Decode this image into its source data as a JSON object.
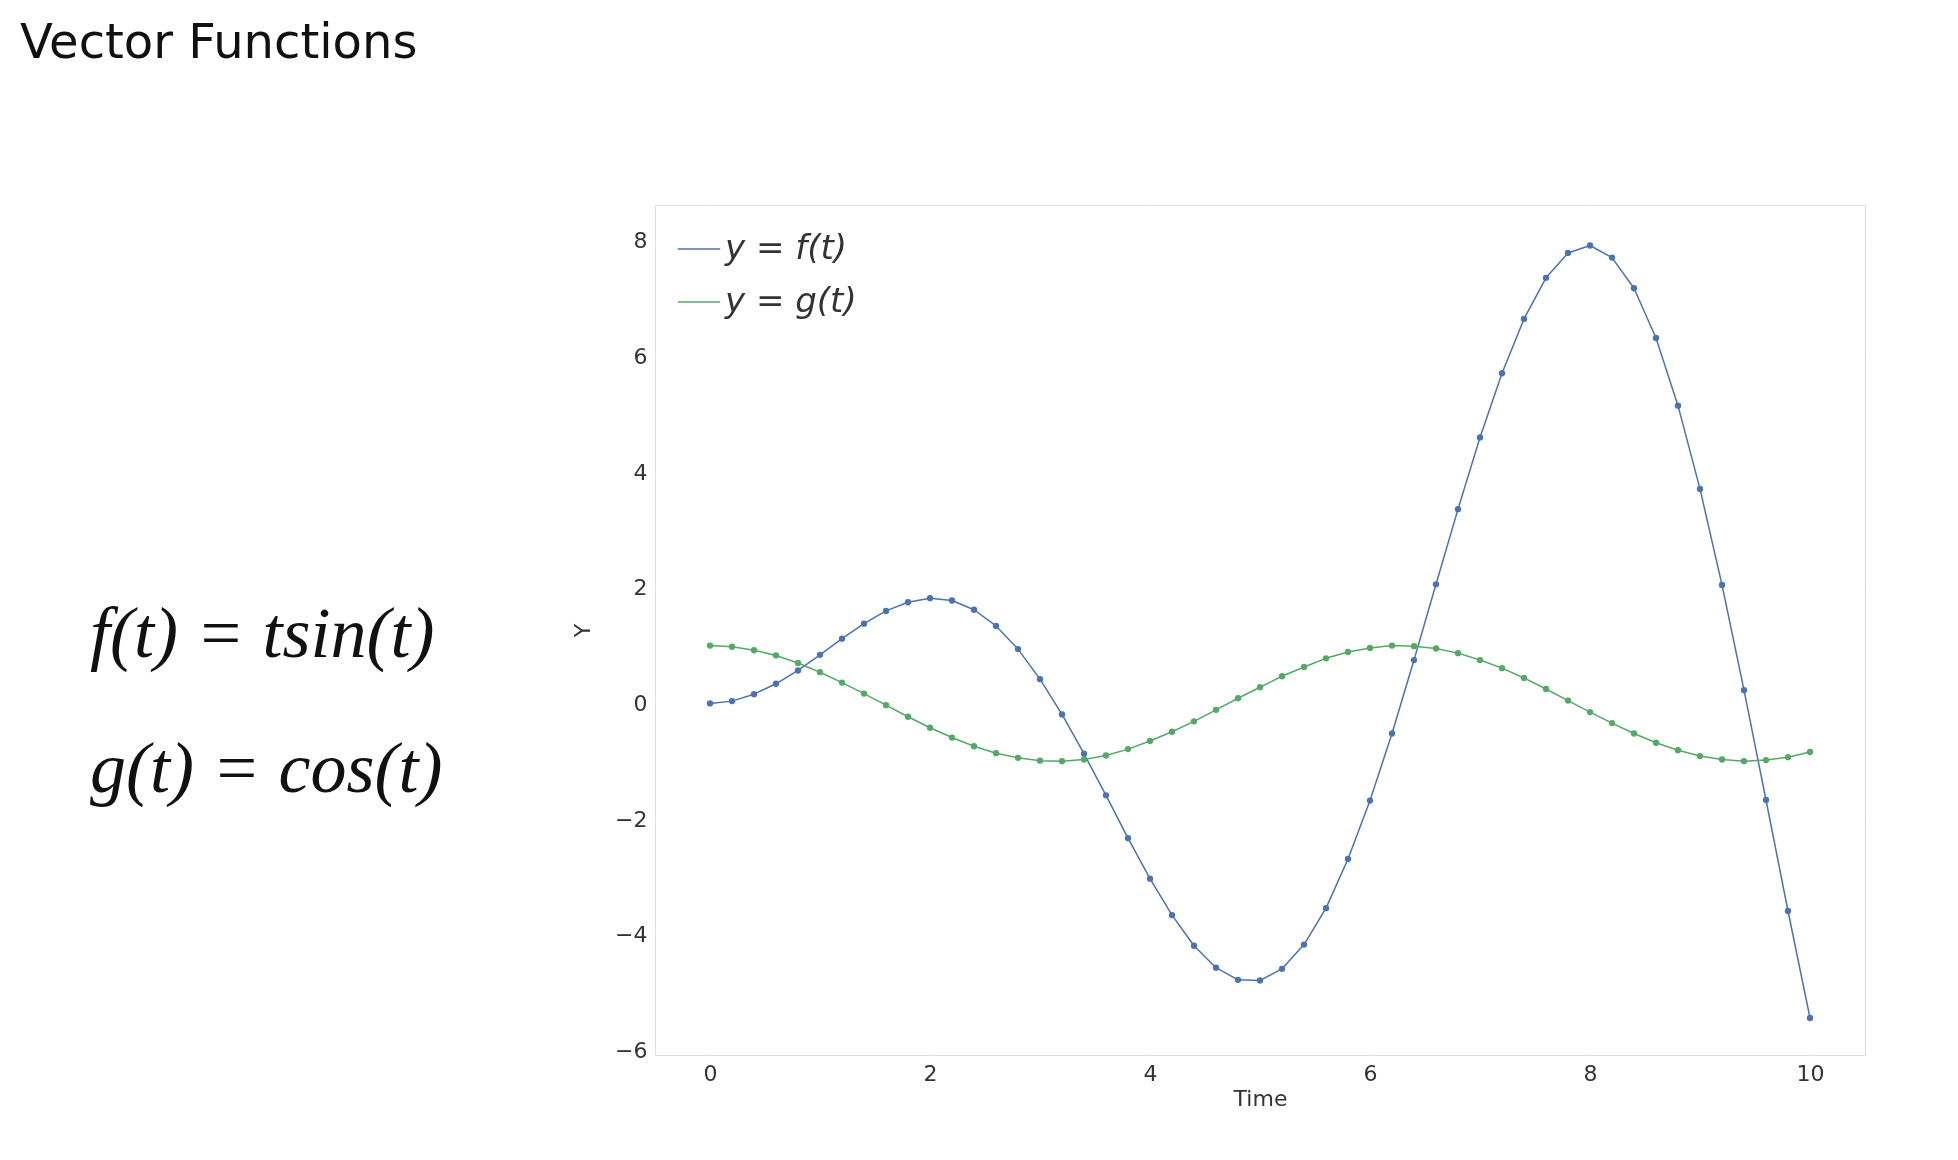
{
  "chart_data": {
    "type": "line",
    "title": "Vector Functions",
    "xlabel": "Time",
    "ylabel": "Y",
    "annotations": [
      "f(t) = tsin(t)",
      "g(t) = cos(t)"
    ],
    "x": [
      0,
      0.2,
      0.4,
      0.6,
      0.8,
      1.0,
      1.2,
      1.4,
      1.6,
      1.8,
      2.0,
      2.2,
      2.4,
      2.6,
      2.8,
      3.0,
      3.2,
      3.4,
      3.6,
      3.8,
      4.0,
      4.2,
      4.4,
      4.6,
      4.8,
      5.0,
      5.2,
      5.4,
      5.6,
      5.8,
      6.0,
      6.2,
      6.4,
      6.6,
      6.8,
      7.0,
      7.2,
      7.4,
      7.6,
      7.8,
      8.0,
      8.2,
      8.4,
      8.6,
      8.8,
      9.0,
      9.2,
      9.4,
      9.6,
      9.8,
      10.0
    ],
    "series": [
      {
        "name": "y = f(t)",
        "color": "#4c72b0",
        "values": [
          0,
          0.04,
          0.16,
          0.34,
          0.57,
          0.84,
          1.12,
          1.38,
          1.6,
          1.75,
          1.82,
          1.78,
          1.62,
          1.34,
          0.94,
          0.42,
          -0.19,
          -0.87,
          -1.59,
          -2.33,
          -3.03,
          -3.66,
          -4.19,
          -4.57,
          -4.78,
          -4.79,
          -4.59,
          -4.17,
          -3.54,
          -2.69,
          -1.68,
          -0.52,
          0.75,
          2.06,
          3.36,
          4.6,
          5.71,
          6.65,
          7.36,
          7.79,
          7.92,
          7.71,
          7.18,
          6.32,
          5.15,
          3.71,
          2.05,
          0.23,
          -1.67,
          -3.59,
          -5.44
        ]
      },
      {
        "name": "y = g(t)",
        "color": "#55a868",
        "values": [
          1,
          0.98,
          0.92,
          0.83,
          0.7,
          0.54,
          0.36,
          0.17,
          -0.03,
          -0.23,
          -0.42,
          -0.59,
          -0.74,
          -0.86,
          -0.94,
          -0.99,
          -1.0,
          -0.97,
          -0.9,
          -0.79,
          -0.65,
          -0.49,
          -0.31,
          -0.11,
          0.09,
          0.28,
          0.47,
          0.63,
          0.78,
          0.89,
          0.96,
          1.0,
          0.99,
          0.95,
          0.87,
          0.75,
          0.61,
          0.44,
          0.25,
          0.05,
          -0.15,
          -0.34,
          -0.52,
          -0.68,
          -0.81,
          -0.91,
          -0.97,
          -1.0,
          -0.98,
          -0.93,
          -0.84
        ]
      }
    ],
    "xlim": [
      -0.5,
      10.5
    ],
    "ylim": [
      -6.08,
      8.62
    ],
    "xticks": [
      0,
      2,
      4,
      6,
      8,
      10
    ],
    "yticks": [
      -6,
      -4,
      -2,
      0,
      2,
      4,
      6,
      8
    ],
    "grid": true,
    "legend": "top left",
    "marker": "circle",
    "line_style": "solid"
  }
}
